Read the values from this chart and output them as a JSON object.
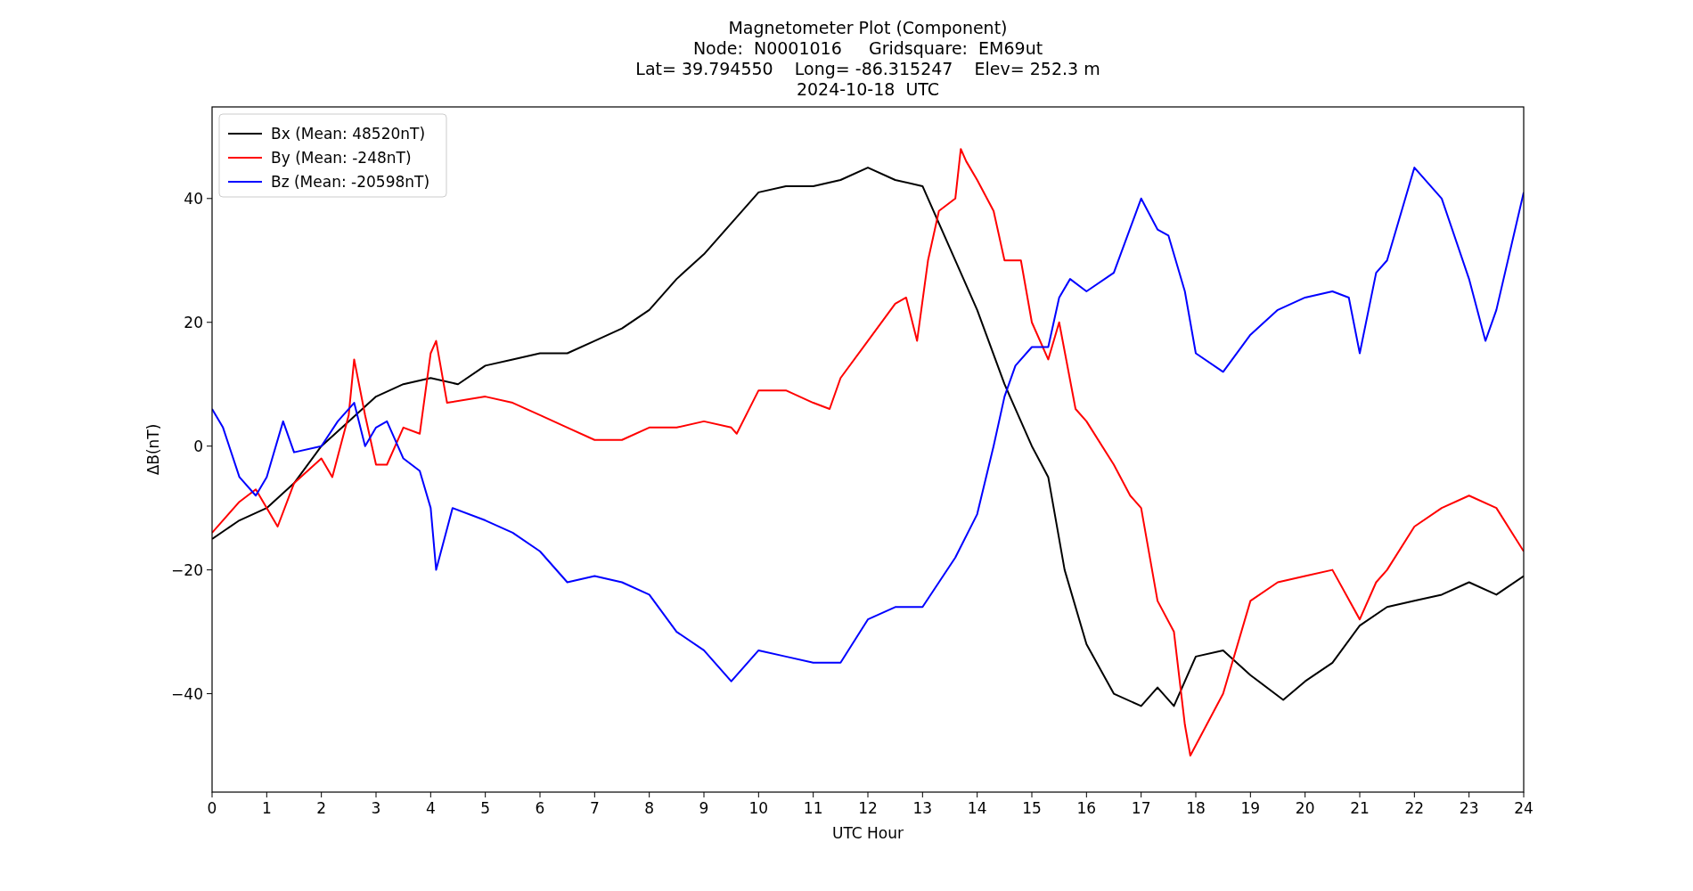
{
  "chart_data": {
    "type": "line",
    "title": "Magnetometer Plot (Component)",
    "subtitle": "Node:  N0001016     Gridsquare:  EM69ut\nLat= 39.794550    Long= -86.315247    Elev= 252.3 m\n2024-10-18  UTC",
    "xlabel": "UTC Hour",
    "ylabel": "ΔB(nT)",
    "xlim": [
      0,
      24
    ],
    "ylim": [
      -55.9,
      54.8
    ],
    "xticks": [
      0,
      1,
      2,
      3,
      4,
      5,
      6,
      7,
      8,
      9,
      10,
      11,
      12,
      13,
      14,
      15,
      16,
      17,
      18,
      19,
      20,
      21,
      22,
      23,
      24
    ],
    "yticks": [
      {
        "value": -40,
        "label": "−40"
      },
      {
        "value": -20,
        "label": "−20"
      },
      0,
      20,
      40
    ],
    "legend": "top left",
    "grid": false,
    "marker": "none",
    "line_style": "solid",
    "series": [
      {
        "name": "Bx (Mean: 48520nT)",
        "color": "#000000",
        "x": [
          0,
          0.5,
          1,
          1.5,
          2,
          2.5,
          3,
          3.5,
          4,
          4.5,
          5,
          5.5,
          6,
          6.5,
          7,
          7.5,
          8,
          8.5,
          9,
          9.5,
          10,
          10.5,
          11,
          11.5,
          12,
          12.5,
          13,
          13.5,
          14,
          14.5,
          15,
          15.3,
          15.6,
          16,
          16.5,
          17,
          17.3,
          17.6,
          18,
          18.5,
          19,
          19.6,
          20,
          20.5,
          21,
          21.5,
          22,
          22.5,
          23,
          23.5,
          24
        ],
        "values": [
          -15,
          -12,
          -10,
          -6,
          0,
          4,
          8,
          10,
          11,
          10,
          13,
          14,
          15,
          15,
          17,
          19,
          22,
          27,
          31,
          36,
          41,
          42,
          42,
          43,
          45,
          43,
          42,
          32,
          22,
          10,
          0,
          -5,
          -20,
          -32,
          -40,
          -42,
          -39,
          -42,
          -34,
          -33,
          -37,
          -41,
          -38,
          -35,
          -29,
          -26,
          -25,
          -24,
          -22,
          -24,
          -21
        ]
      },
      {
        "name": "By (Mean: -248nT)",
        "color": "#ff0000",
        "x": [
          0,
          0.5,
          0.8,
          1.2,
          1.5,
          2,
          2.2,
          2.5,
          2.6,
          2.8,
          3,
          3.2,
          3.5,
          3.8,
          4,
          4.1,
          4.3,
          5,
          5.5,
          6,
          6.5,
          7,
          7.5,
          8,
          8.5,
          9,
          9.5,
          9.6,
          10,
          10.5,
          11,
          11.3,
          11.5,
          12,
          12.5,
          12.7,
          12.9,
          13.1,
          13.3,
          13.6,
          13.7,
          13.8,
          14,
          14.3,
          14.5,
          14.8,
          15,
          15.3,
          15.5,
          15.8,
          16,
          16.5,
          16.8,
          17,
          17.3,
          17.6,
          17.8,
          17.9,
          18.2,
          18.5,
          19,
          19.5,
          20,
          20.5,
          21,
          21.3,
          21.5,
          22,
          22.5,
          23,
          23.5,
          24
        ],
        "values": [
          -14,
          -9,
          -7,
          -13,
          -6,
          -2,
          -5,
          5,
          14,
          5,
          -3,
          -3,
          3,
          2,
          15,
          17,
          7,
          8,
          7,
          5,
          3,
          1,
          1,
          3,
          3,
          4,
          3,
          2,
          9,
          9,
          7,
          6,
          11,
          17,
          23,
          24,
          17,
          30,
          38,
          40,
          48,
          46,
          43,
          38,
          30,
          30,
          20,
          14,
          20,
          6,
          4,
          -3,
          -8,
          -10,
          -25,
          -30,
          -45,
          -50,
          -45,
          -40,
          -25,
          -22,
          -21,
          -20,
          -28,
          -22,
          -20,
          -13,
          -10,
          -8,
          -10,
          -17
        ]
      },
      {
        "name": "Bz (Mean: -20598nT)",
        "color": "#0000ff",
        "x": [
          0,
          0.2,
          0.5,
          0.8,
          1,
          1.3,
          1.5,
          2,
          2.3,
          2.6,
          2.8,
          3,
          3.2,
          3.5,
          3.8,
          4,
          4.1,
          4.4,
          5,
          5.5,
          6,
          6.5,
          7,
          7.5,
          8,
          8.5,
          9,
          9.5,
          10,
          10.5,
          11,
          11.5,
          12,
          12.5,
          13,
          13.3,
          13.6,
          14,
          14.3,
          14.5,
          14.7,
          15,
          15.3,
          15.5,
          15.7,
          16,
          16.5,
          17,
          17.3,
          17.5,
          17.8,
          18,
          18.5,
          19,
          19.5,
          20,
          20.5,
          20.8,
          21,
          21.3,
          21.5,
          22,
          22.5,
          23,
          23.3,
          23.5,
          24
        ],
        "values": [
          6,
          3,
          -5,
          -8,
          -5,
          4,
          -1,
          0,
          4,
          7,
          0,
          3,
          4,
          -2,
          -4,
          -10,
          -20,
          -10,
          -12,
          -14,
          -17,
          -22,
          -21,
          -22,
          -24,
          -30,
          -33,
          -38,
          -33,
          -34,
          -35,
          -35,
          -28,
          -26,
          -26,
          -22,
          -18,
          -11,
          0,
          8,
          13,
          16,
          16,
          24,
          27,
          25,
          28,
          40,
          35,
          34,
          25,
          15,
          12,
          18,
          22,
          24,
          25,
          24,
          15,
          28,
          30,
          45,
          40,
          27,
          17,
          22,
          41
        ]
      }
    ]
  }
}
